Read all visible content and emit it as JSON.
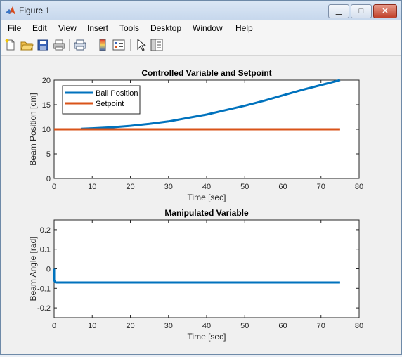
{
  "window": {
    "title": "Figure 1",
    "minimize_glyph": "▁",
    "maximize_glyph": "□",
    "close_glyph": "✕",
    "dock_glyph": "↘"
  },
  "menu": [
    "File",
    "Edit",
    "View",
    "Insert",
    "Tools",
    "Desktop",
    "Window",
    "Help"
  ],
  "toolbar": [
    "new-file-icon",
    "open-folder-icon",
    "save-icon",
    "print-icon",
    "print-preview-icon",
    "colorbar-icon",
    "legend-icon",
    "pointer-icon",
    "property-editor-icon"
  ],
  "colors": {
    "ball_position": "#0072bd",
    "setpoint": "#d95319"
  },
  "chart_data": [
    {
      "type": "line",
      "title": "Controlled Variable and Setpoint",
      "xlabel": "Time [sec]",
      "ylabel": "Beam Position [cm]",
      "xlim": [
        0,
        80
      ],
      "ylim": [
        0,
        20
      ],
      "xticks": [
        "0",
        "10",
        "20",
        "30",
        "40",
        "50",
        "60",
        "70",
        "80"
      ],
      "yticks": [
        "0",
        "5",
        "10",
        "15",
        "20"
      ],
      "grid": false,
      "legend": "top-left",
      "series": [
        {
          "name": "Ball Position",
          "x": [
            7,
            10,
            15,
            20,
            25,
            30,
            35,
            40,
            45,
            50,
            55,
            60,
            65,
            70,
            75
          ],
          "y": [
            10.1,
            10.2,
            10.4,
            10.7,
            11.1,
            11.6,
            12.3,
            13.0,
            13.9,
            14.8,
            15.8,
            16.9,
            18.0,
            19.0,
            20.0
          ]
        },
        {
          "name": "Setpoint",
          "x": [
            0,
            75
          ],
          "y": [
            10,
            10
          ]
        }
      ]
    },
    {
      "type": "line",
      "title": "Manipulated Variable",
      "xlabel": "Time [sec]",
      "ylabel": "Beam Angle [rad]",
      "xlim": [
        0,
        80
      ],
      "ylim": [
        -0.25,
        0.25
      ],
      "xticks": [
        "0",
        "10",
        "20",
        "30",
        "40",
        "50",
        "60",
        "70",
        "80"
      ],
      "yticks": [
        "-0.2",
        "-0.1",
        "0",
        "0.1",
        "0.2"
      ],
      "grid": false,
      "series": [
        {
          "x": [
            0,
            0,
            0.4,
            75
          ],
          "y": [
            0,
            -0.06,
            -0.07,
            -0.07
          ]
        }
      ]
    }
  ]
}
